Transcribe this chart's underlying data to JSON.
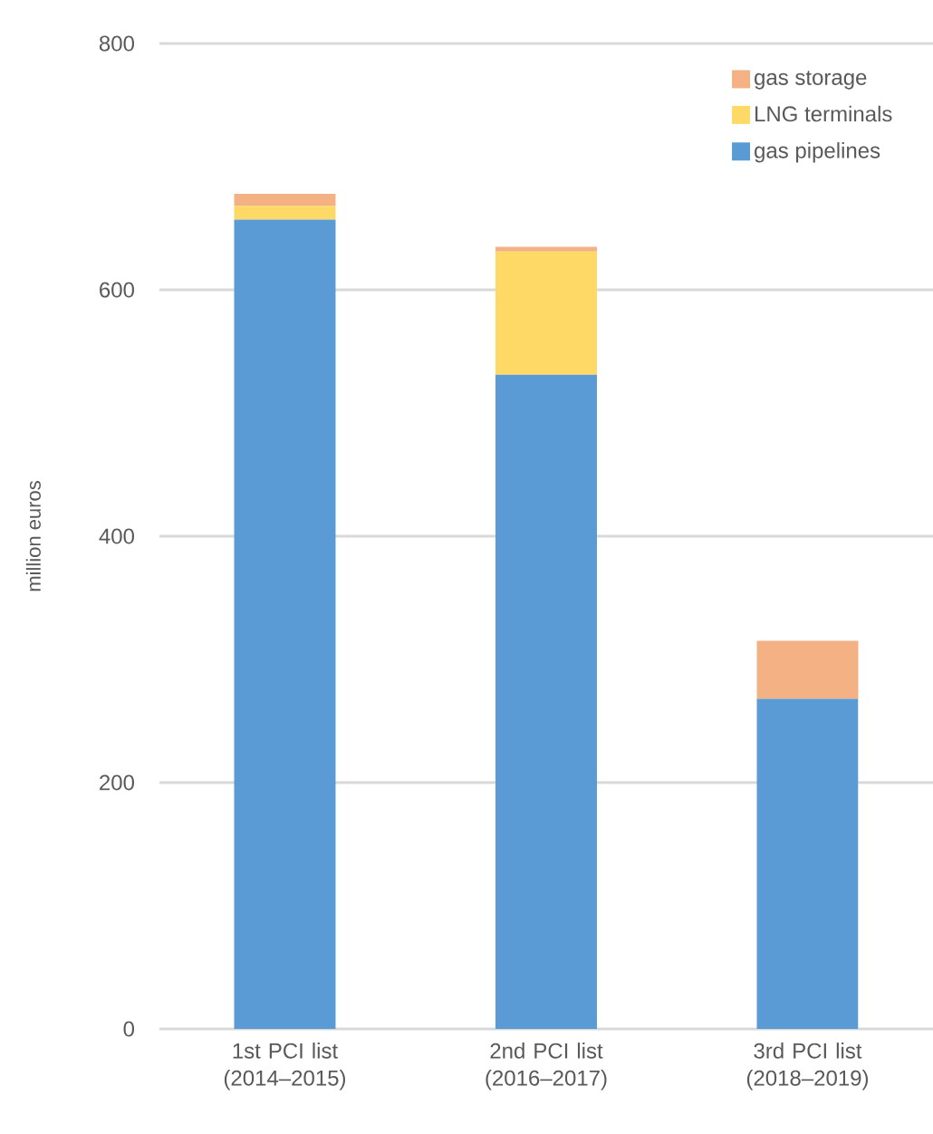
{
  "chart_data": {
    "type": "bar",
    "stacked": true,
    "ylabel": "million euros",
    "categories": [
      "1st PCI list (2014–2015)",
      "2nd PCI list (2016–2017)",
      "3rd PCI list (2018–2019)"
    ],
    "series": [
      {
        "name": "gas pipelines",
        "color": "#5b9bd5",
        "values": [
          657,
          531,
          268
        ]
      },
      {
        "name": "LNG terminals",
        "color": "#ffd966",
        "values": [
          11,
          100,
          null
        ]
      },
      {
        "name": "gas storage",
        "color": "#f4b183",
        "values": [
          10,
          4,
          47
        ]
      }
    ],
    "ylim": [
      0,
      800
    ],
    "yticks": [
      0,
      200,
      400,
      600,
      800
    ],
    "grid": "y",
    "legend": "top right"
  }
}
